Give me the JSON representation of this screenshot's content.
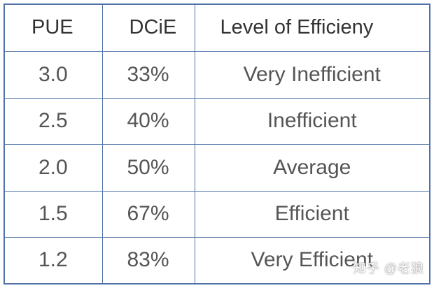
{
  "table": {
    "headers": [
      "PUE",
      "DCiE",
      "Level of Efficieny"
    ],
    "rows": [
      [
        "3.0",
        "33%",
        "Very Inefficient"
      ],
      [
        "2.5",
        "40%",
        "Inefficient"
      ],
      [
        "2.0",
        "50%",
        "Average"
      ],
      [
        "1.5",
        "67%",
        "Efficient"
      ],
      [
        "1.2",
        "83%",
        "Very Efficient"
      ]
    ]
  },
  "watermark": "知乎 @老狼",
  "colors": {
    "border": "#4f72a8",
    "header_text": "#333333",
    "cell_text": "#555555"
  }
}
